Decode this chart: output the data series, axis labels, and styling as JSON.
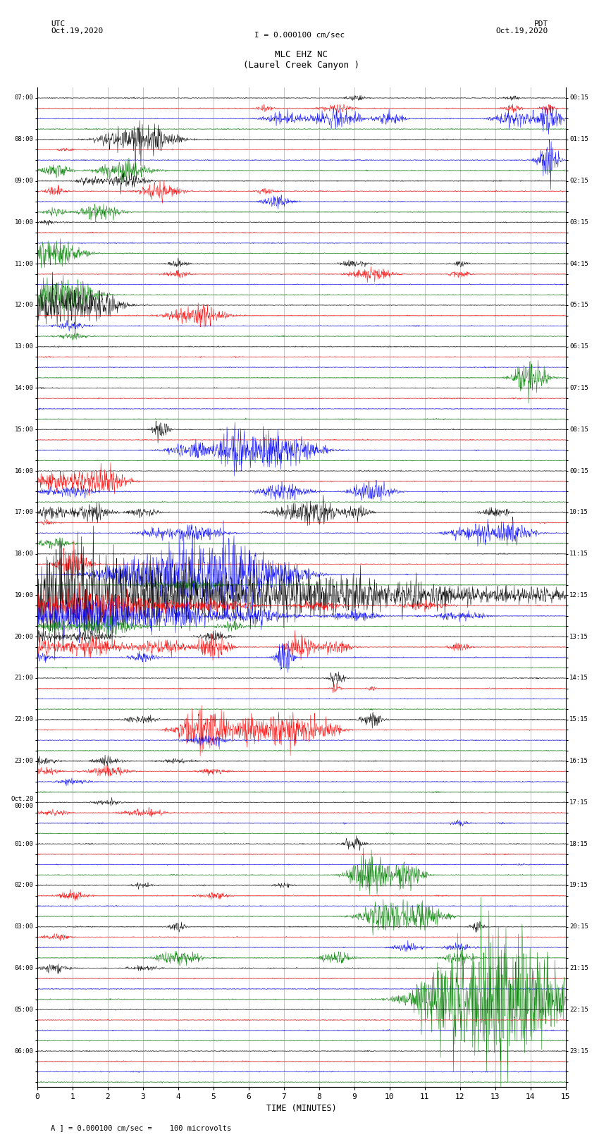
{
  "title_line1": "MLC EHZ NC",
  "title_line2": "(Laurel Creek Canyon )",
  "title_scale": "I = 0.000100 cm/sec",
  "left_header_line1": "UTC",
  "left_header_line2": "Oct.19,2020",
  "right_header_line1": "PDT",
  "right_header_line2": "Oct.19,2020",
  "xlabel": "TIME (MINUTES)",
  "footer": "A ] = 0.000100 cm/sec =    100 microvolts",
  "xlim": [
    0,
    15
  ],
  "xticks": [
    0,
    1,
    2,
    3,
    4,
    5,
    6,
    7,
    8,
    9,
    10,
    11,
    12,
    13,
    14,
    15
  ],
  "trace_colors": [
    "black",
    "red",
    "blue",
    "green"
  ],
  "left_labels": [
    "07:00",
    "",
    "",
    "",
    "08:00",
    "",
    "",
    "",
    "09:00",
    "",
    "",
    "",
    "10:00",
    "",
    "",
    "",
    "11:00",
    "",
    "",
    "",
    "12:00",
    "",
    "",
    "",
    "13:00",
    "",
    "",
    "",
    "14:00",
    "",
    "",
    "",
    "15:00",
    "",
    "",
    "",
    "16:00",
    "",
    "",
    "",
    "17:00",
    "",
    "",
    "",
    "18:00",
    "",
    "",
    "",
    "19:00",
    "",
    "",
    "",
    "20:00",
    "",
    "",
    "",
    "21:00",
    "",
    "",
    "",
    "22:00",
    "",
    "",
    "",
    "23:00",
    "",
    "",
    "",
    "Oct.20\n00:00",
    "",
    "",
    "",
    "01:00",
    "",
    "",
    "",
    "02:00",
    "",
    "",
    "",
    "03:00",
    "",
    "",
    "",
    "04:00",
    "",
    "",
    "",
    "05:00",
    "",
    "",
    "",
    "06:00",
    "",
    "",
    ""
  ],
  "right_labels": [
    "00:15",
    "",
    "",
    "",
    "01:15",
    "",
    "",
    "",
    "02:15",
    "",
    "",
    "",
    "03:15",
    "",
    "",
    "",
    "04:15",
    "",
    "",
    "",
    "05:15",
    "",
    "",
    "",
    "06:15",
    "",
    "",
    "",
    "07:15",
    "",
    "",
    "",
    "08:15",
    "",
    "",
    "",
    "09:15",
    "",
    "",
    "",
    "10:15",
    "",
    "",
    "",
    "11:15",
    "",
    "",
    "",
    "12:15",
    "",
    "",
    "",
    "13:15",
    "",
    "",
    "",
    "14:15",
    "",
    "",
    "",
    "15:15",
    "",
    "",
    "",
    "16:15",
    "",
    "",
    "",
    "17:15",
    "",
    "",
    "",
    "18:15",
    "",
    "",
    "",
    "19:15",
    "",
    "",
    "",
    "20:15",
    "",
    "",
    "",
    "21:15",
    "",
    "",
    "",
    "22:15",
    "",
    "",
    "",
    "23:15",
    "",
    "",
    ""
  ],
  "background_color": "white",
  "grid_color": "#999999"
}
